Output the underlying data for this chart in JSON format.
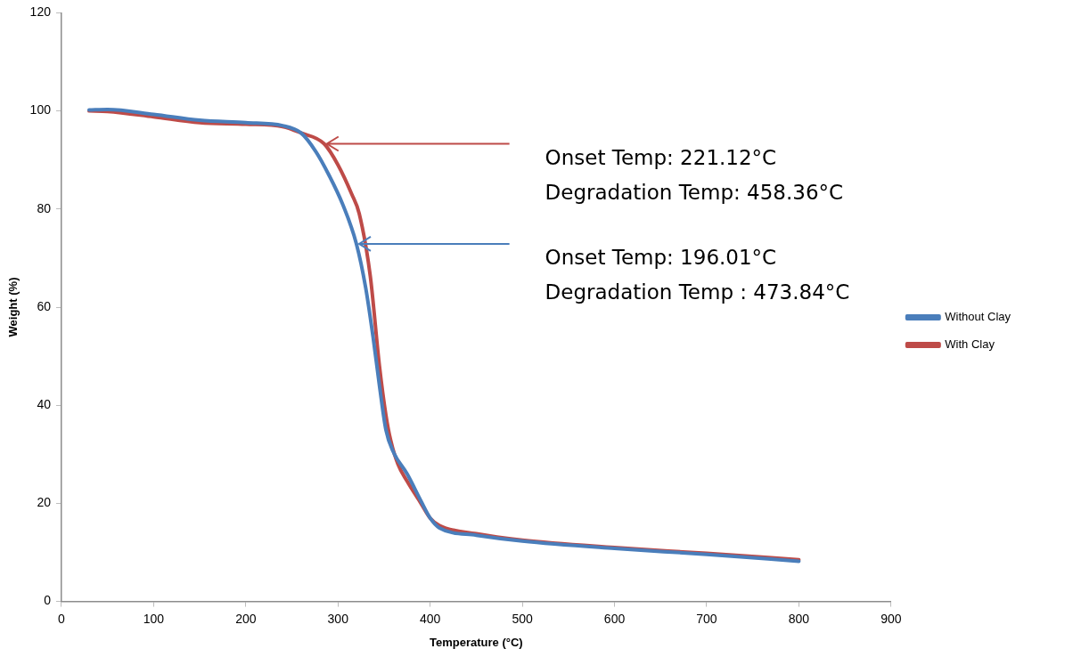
{
  "chart_data": {
    "type": "line",
    "xlabel": "Temperature (°C)",
    "ylabel": "Weight (%)",
    "xlim": [
      0,
      900
    ],
    "xticks": [
      0,
      100,
      200,
      300,
      400,
      500,
      600,
      700,
      800,
      900
    ],
    "ylim": [
      0,
      120
    ],
    "yticks": [
      0,
      20,
      40,
      60,
      80,
      100,
      120
    ],
    "grid": false,
    "legend": "right",
    "marker": "none",
    "line_style": "solid",
    "series": [
      {
        "name": "Without Clay",
        "color": "#4a7ebb",
        "x": [
          30,
          50,
          100,
          150,
          200,
          240,
          260,
          276,
          290,
          305,
          320,
          330,
          338,
          345,
          352,
          360,
          375,
          390,
          400,
          410,
          450,
          500,
          600,
          700,
          800
        ],
        "values": [
          100.2,
          100.3,
          99.3,
          98.1,
          97.6,
          97,
          95.5,
          91.7,
          87,
          81,
          72.9,
          64,
          54,
          44,
          35,
          30.5,
          26,
          20.5,
          17,
          15,
          13.5,
          12.3,
          10.8,
          9.6,
          8.2
        ]
      },
      {
        "name": "With Clay",
        "color": "#be4b48",
        "x": [
          30,
          50,
          100,
          150,
          200,
          240,
          260,
          285,
          300,
          315,
          323,
          335,
          345,
          352,
          357,
          365,
          375,
          390,
          400,
          410,
          450,
          500,
          600,
          700,
          800
        ],
        "values": [
          100,
          99.9,
          98.8,
          97.6,
          97.3,
          96.8,
          95.5,
          93.3,
          89,
          83,
          79.1,
          66.4,
          48,
          38,
          33,
          28,
          24.5,
          20,
          17,
          15.5,
          13.8,
          12.5,
          11,
          9.8,
          8.5
        ]
      }
    ],
    "annotations": [
      "Onset Temp: 221.12°C",
      "Degradation Temp: 458.36°C",
      "Onset Temp: 196.01°C",
      "Degradation Temp : 473.84°C"
    ]
  }
}
